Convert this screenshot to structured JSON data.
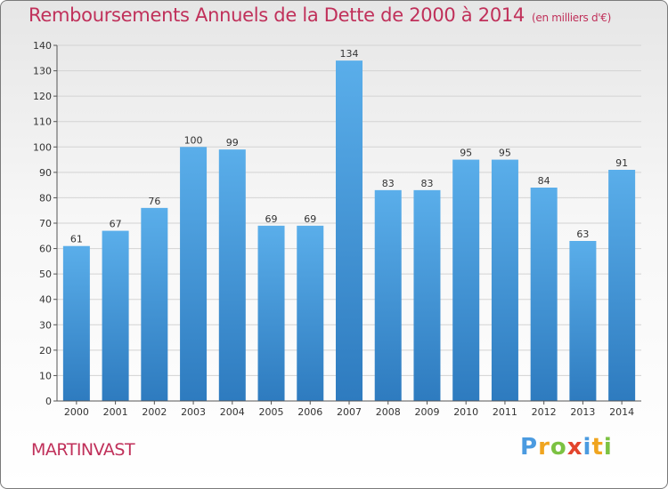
{
  "title": "Remboursements Annuels de la Dette de 2000 à 2014",
  "unit": "(en milliers d'€)",
  "place": "MARTINVAST",
  "logo": [
    "P",
    "r",
    "o",
    "x",
    "i",
    "t",
    "i"
  ],
  "colors": {
    "title": "#c0305a",
    "bar_top": "#5aaeea",
    "bar_bottom": "#2e7bbf",
    "grid": "#d3d3d3"
  },
  "chart_data": {
    "type": "bar",
    "title": "Remboursements Annuels de la Dette de 2000 à 2014",
    "ylabel": "",
    "xlabel": "",
    "ylim": [
      0,
      140
    ],
    "yticks": [
      0,
      10,
      20,
      30,
      40,
      50,
      60,
      70,
      80,
      90,
      100,
      110,
      120,
      130,
      140
    ],
    "grid": true,
    "categories": [
      "2000",
      "2001",
      "2002",
      "2003",
      "2004",
      "2005",
      "2006",
      "2007",
      "2008",
      "2009",
      "2010",
      "2011",
      "2012",
      "2013",
      "2014"
    ],
    "values": [
      61,
      67,
      76,
      100,
      99,
      69,
      69,
      134,
      83,
      83,
      95,
      95,
      84,
      63,
      91
    ]
  }
}
